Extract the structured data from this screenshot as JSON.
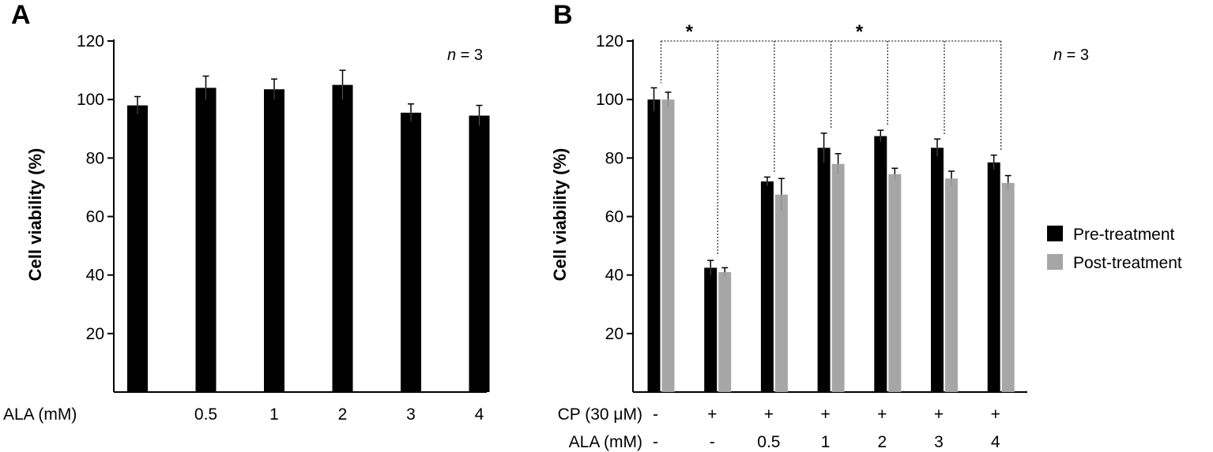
{
  "chart_data": [
    {
      "panel": "A",
      "type": "bar",
      "ylabel": "Cell viability (%)",
      "ylim": [
        0,
        120
      ],
      "yticks": [
        20,
        40,
        60,
        80,
        100,
        120
      ],
      "n_label": "n = 3",
      "n_italic": "n",
      "n_rest": " = 3",
      "row_label": "ALA (mM)",
      "categories": [
        "",
        "0.5",
        "1",
        "2",
        "3",
        "4"
      ],
      "values": [
        98,
        104,
        103.5,
        105,
        95.5,
        94.5
      ],
      "errors": [
        3,
        4,
        3.5,
        5,
        3,
        3.5
      ],
      "color": "#000000"
    },
    {
      "panel": "B",
      "type": "bar",
      "ylabel": "Cell viability (%)",
      "ylim": [
        0,
        120
      ],
      "yticks": [
        20,
        40,
        60,
        80,
        100,
        120
      ],
      "n_label": "n = 3",
      "n_italic": "n",
      "n_rest": " = 3",
      "row1_label": "CP (30 μM)",
      "row1": [
        "-",
        "+",
        "+",
        "+",
        "+",
        "+",
        "+"
      ],
      "row2_label": "ALA (mM)",
      "row2": [
        "-",
        "-",
        "0.5",
        "1",
        "2",
        "3",
        "4"
      ],
      "series": [
        {
          "name": "Pre-treatment",
          "color": "#000000",
          "values": [
            100,
            42.5,
            72,
            83.5,
            87.5,
            83.5,
            78.5
          ],
          "errors": [
            4,
            2.5,
            1.5,
            5,
            2,
            3,
            2.5
          ]
        },
        {
          "name": "Post-treatment",
          "color": "#a6a6a6",
          "values": [
            100,
            41,
            67.5,
            78,
            74.5,
            73,
            71.5
          ],
          "errors": [
            2.5,
            1.5,
            5.5,
            3.5,
            2,
            2.5,
            2.5
          ]
        }
      ],
      "significance": [
        "*",
        "*"
      ]
    }
  ]
}
